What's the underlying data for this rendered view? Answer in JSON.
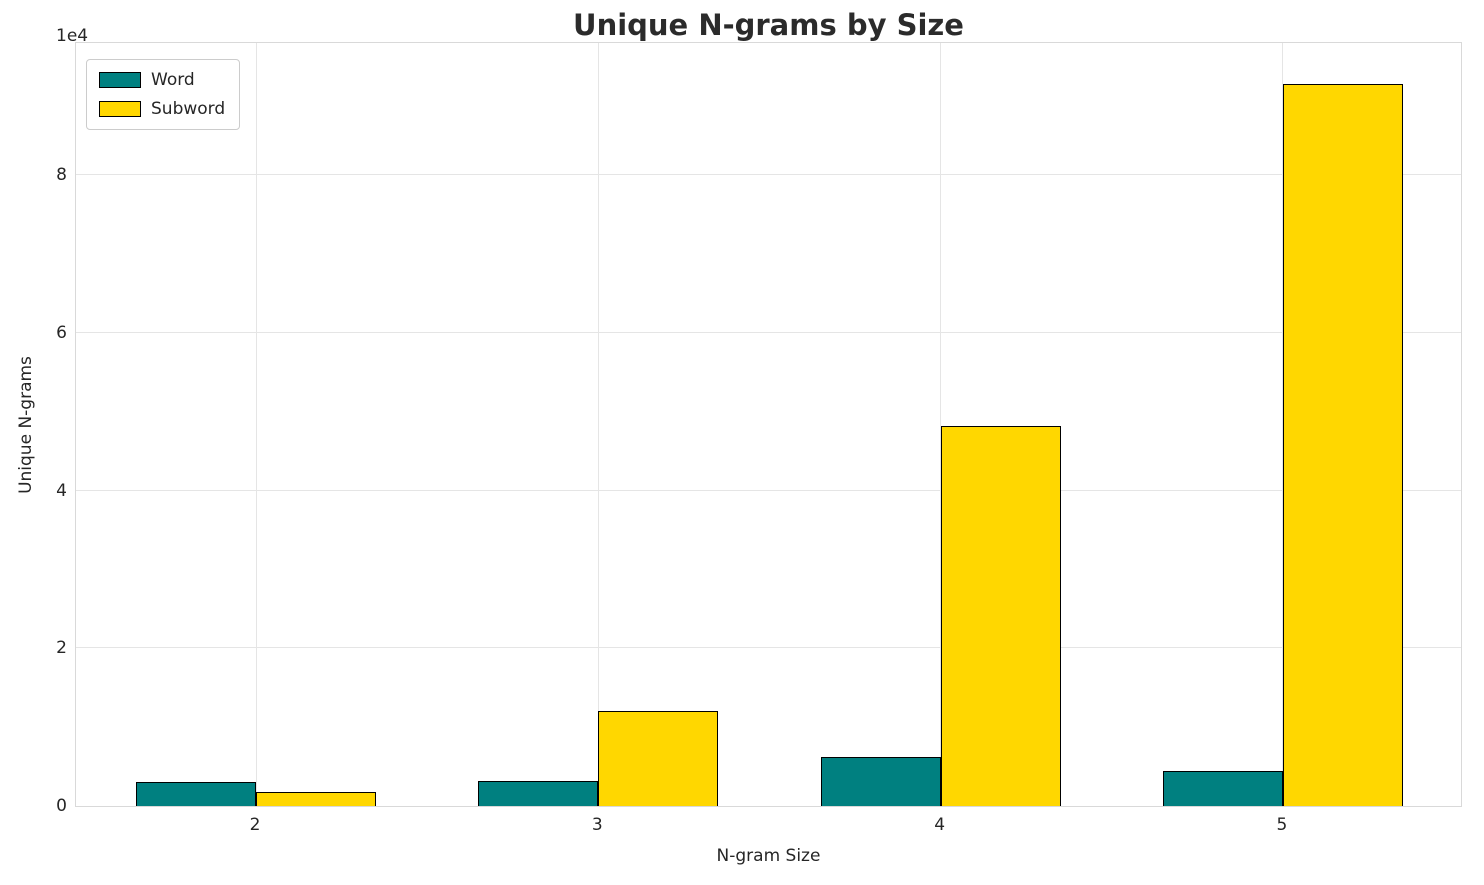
{
  "chart_data": {
    "type": "bar",
    "title": "Unique N-grams by Size",
    "xlabel": "N-gram Size",
    "ylabel": "Unique N-grams",
    "offset_label": "1e4",
    "categories": [
      "2",
      "3",
      "4",
      "5"
    ],
    "series": [
      {
        "name": "Word",
        "color": "#008080",
        "values": [
          3000,
          3200,
          6200,
          4500
        ]
      },
      {
        "name": "Subword",
        "color": "#ffd700",
        "values": [
          1800,
          12000,
          48200,
          91500
        ]
      }
    ],
    "ylim": [
      0,
      97000
    ],
    "yticks": [
      0,
      20000,
      40000,
      60000,
      80000
    ],
    "ytick_labels": [
      "0",
      "2",
      "4",
      "6",
      "8"
    ],
    "grid": true,
    "legend_position": "upper left",
    "bar_edge_color": "#000000",
    "grid_color": "#e5e5e5"
  }
}
